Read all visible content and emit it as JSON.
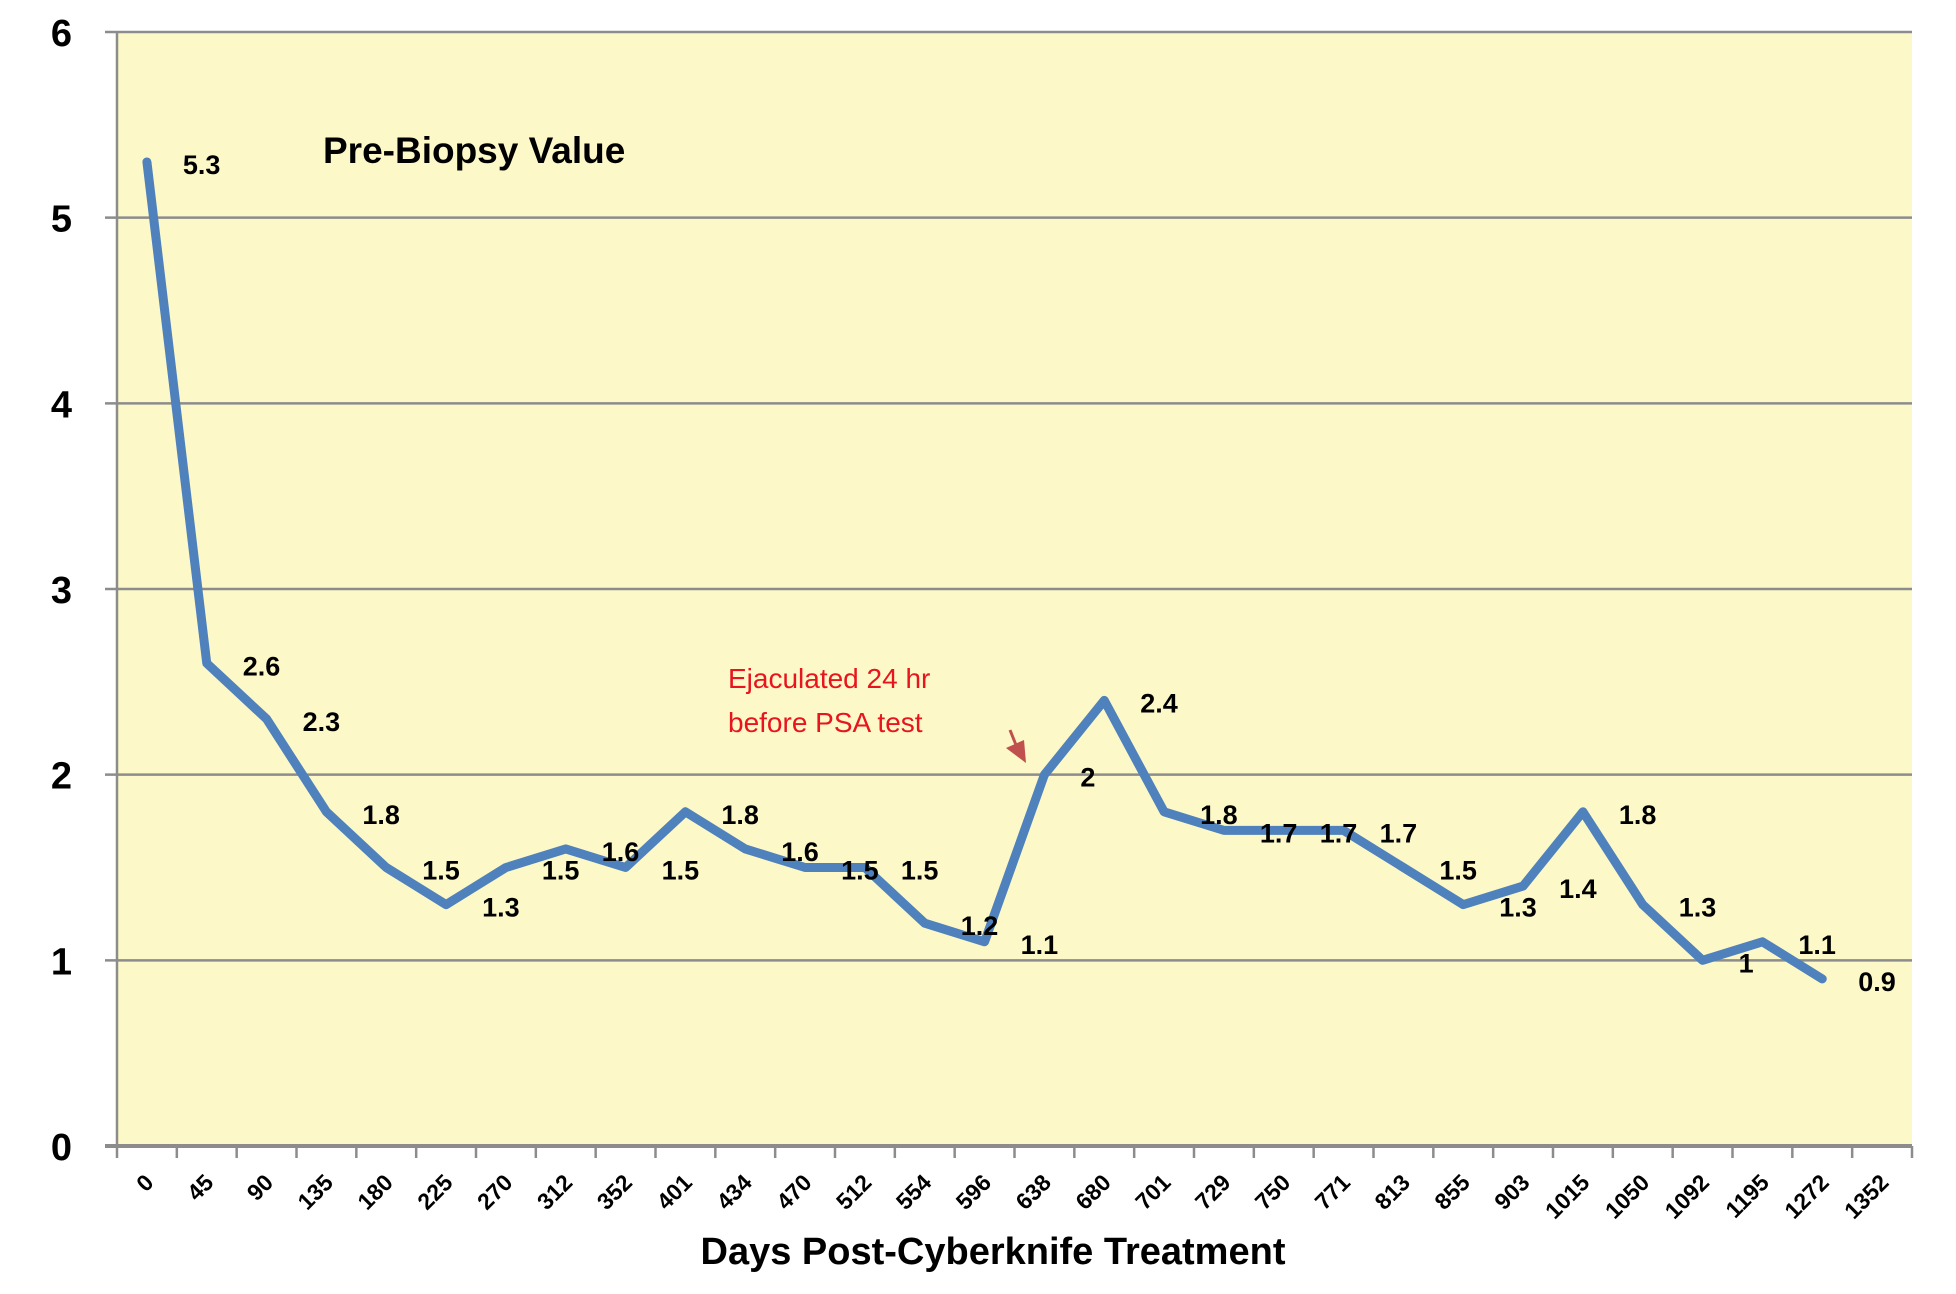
{
  "chart_data": {
    "type": "line",
    "title": "",
    "xlabel": "Days Post-Cyberknife Treatment",
    "ylabel": "",
    "ylim": [
      0,
      6
    ],
    "yticks": [
      0,
      1,
      2,
      3,
      4,
      5,
      6
    ],
    "grid": true,
    "legend": "none",
    "categories": [
      "0",
      "45",
      "90",
      "135",
      "180",
      "225",
      "270",
      "312",
      "352",
      "401",
      "434",
      "470",
      "512",
      "554",
      "596",
      "638",
      "680",
      "701",
      "729",
      "750",
      "771",
      "813",
      "855",
      "903",
      "1015",
      "1050",
      "1092",
      "1195",
      "1272",
      "1352"
    ],
    "series": [
      {
        "values": [
          5.3,
          2.6,
          2.3,
          1.8,
          1.5,
          1.3,
          1.5,
          1.6,
          1.5,
          1.8,
          1.6,
          1.5,
          1.5,
          1.2,
          1.1,
          2,
          2.4,
          1.8,
          1.7,
          1.7,
          1.7,
          1.5,
          1.3,
          1.4,
          1.8,
          1.3,
          1,
          1.1,
          0.9,
          null
        ],
        "data_labels": [
          "5.3",
          "2.6",
          "2.3",
          "1.8",
          "1.5",
          "1.3",
          "1.5",
          "1.6",
          "1.5",
          "1.8",
          "1.6",
          "1.5",
          "1.5",
          "1.2",
          "1.1",
          "2",
          "2.4",
          "1.8",
          "1.7",
          "1.7",
          "1.7",
          "1.5",
          "1.3",
          "1.4",
          "1.8",
          "1.3",
          "1",
          "1.1",
          "0.9",
          ""
        ]
      }
    ],
    "annotations": {
      "pre_biopsy": "Pre-Biopsy Value",
      "ejaculation_line1": "Ejaculated 24 hr",
      "ejaculation_line2": "before PSA test"
    },
    "colors": {
      "plot_bg": "#FCF8C8",
      "line": "#4F81BD",
      "grid": "#8C8C8C",
      "annotation": "#E8141E",
      "arrow": "#C0504D"
    }
  }
}
